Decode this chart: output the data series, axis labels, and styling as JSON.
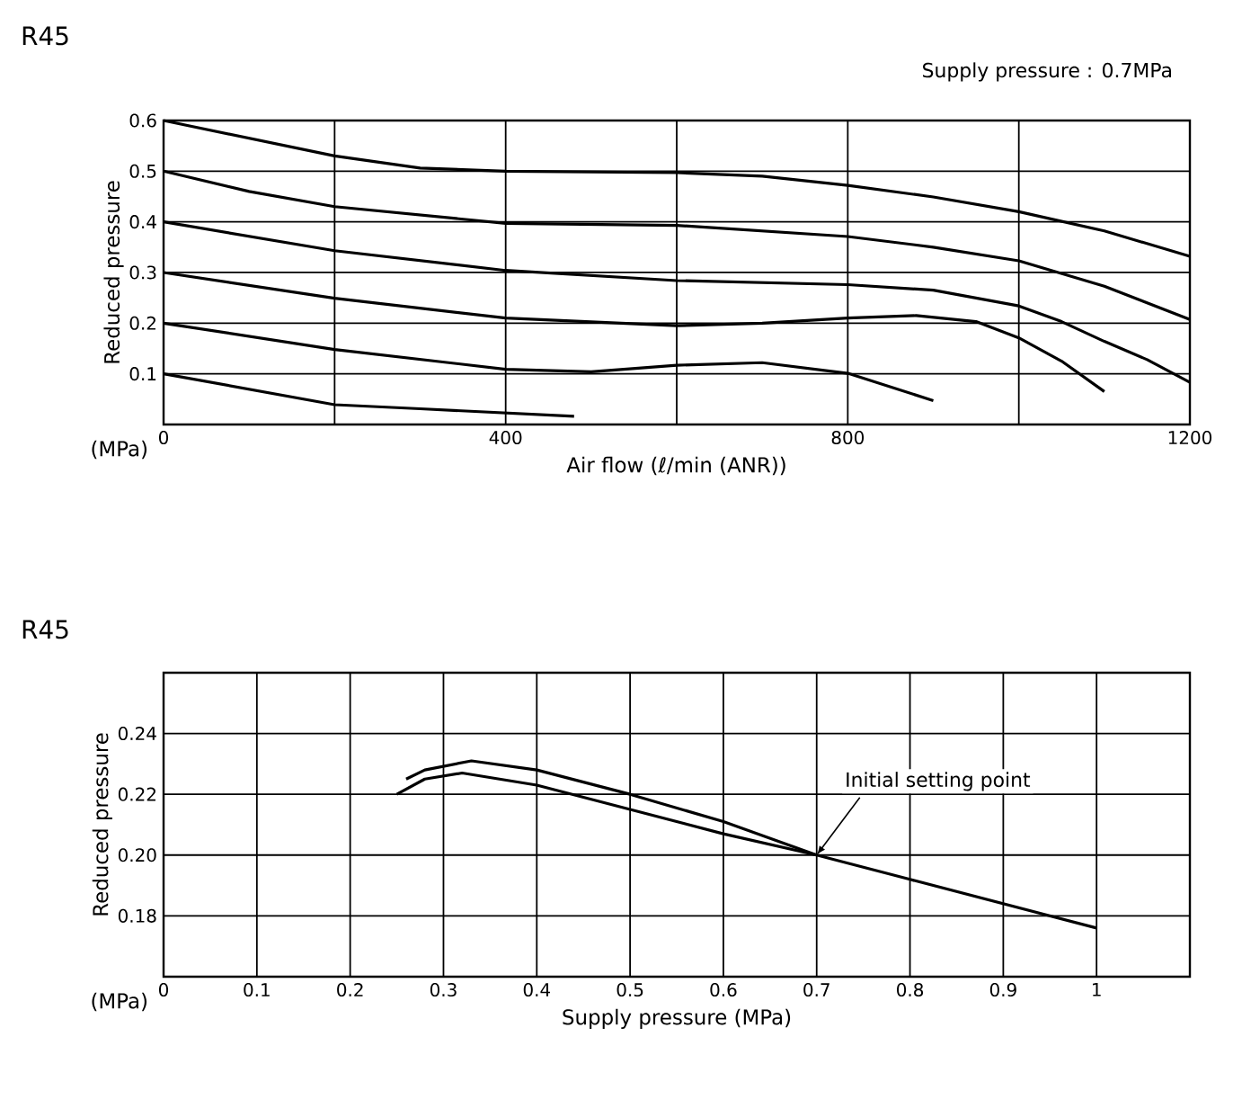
{
  "chart_data": [
    {
      "type": "line",
      "title": "R45",
      "subtitle": "Supply pressure : 0.7MPa",
      "xlabel": "Air flow (ℓ/min (ANR))",
      "ylabel": "Reduced pressure",
      "annotations": [
        "(MPa)"
      ],
      "xlim": [
        0,
        1200
      ],
      "ylim": [
        0,
        0.6
      ],
      "xticks": [
        0,
        {
          "value": 200,
          "label": null
        },
        400,
        {
          "value": 600,
          "label": null
        },
        800,
        {
          "value": 1000,
          "label": null
        },
        1200
      ],
      "yticks": [
        0.1,
        0.2,
        0.3,
        0.4,
        0.5,
        0.6
      ],
      "grid": true,
      "series": [
        {
          "color": "#000000",
          "x": [
            0,
            200,
            300,
            400,
            600,
            700,
            800,
            900,
            1000,
            1100,
            1200
          ],
          "values": [
            0.6,
            0.53,
            0.506,
            0.5,
            0.497,
            0.49,
            0.472,
            0.449,
            0.42,
            0.382,
            0.332
          ]
        },
        {
          "color": "#000000",
          "x": [
            0,
            100,
            200,
            400,
            600,
            800,
            900,
            1000,
            1100,
            1200
          ],
          "values": [
            0.5,
            0.46,
            0.43,
            0.397,
            0.393,
            0.371,
            0.35,
            0.323,
            0.273,
            0.207
          ]
        },
        {
          "color": "#000000",
          "x": [
            0,
            200,
            400,
            600,
            800,
            900,
            1000,
            1050,
            1100,
            1150,
            1200
          ],
          "values": [
            0.4,
            0.343,
            0.304,
            0.284,
            0.276,
            0.265,
            0.234,
            0.203,
            0.164,
            0.128,
            0.083
          ]
        },
        {
          "color": "#000000",
          "x": [
            0,
            200,
            400,
            600,
            700,
            800,
            880,
            950,
            1000,
            1050,
            1100
          ],
          "values": [
            0.3,
            0.249,
            0.21,
            0.195,
            0.2,
            0.21,
            0.215,
            0.203,
            0.171,
            0.125,
            0.065
          ]
        },
        {
          "color": "#000000",
          "x": [
            0,
            200,
            400,
            500,
            600,
            700,
            800,
            900
          ],
          "values": [
            0.2,
            0.148,
            0.109,
            0.104,
            0.117,
            0.122,
            0.101,
            0.047
          ]
        },
        {
          "color": "#000000",
          "x": [
            0,
            200,
            300,
            480
          ],
          "values": [
            0.1,
            0.039,
            0.031,
            0.016
          ]
        }
      ]
    },
    {
      "type": "line",
      "title": "R45",
      "xlabel": "Supply pressure (MPa)",
      "ylabel": "Reduced pressure",
      "annotations": [
        "(MPa)",
        {
          "text": "Initial setting point",
          "x": 0.7,
          "y": 0.2
        }
      ],
      "xlim": [
        0,
        1.1
      ],
      "ylim": [
        0.16,
        0.26
      ],
      "xticks": [
        0,
        0.1,
        0.2,
        0.3,
        0.4,
        0.5,
        0.6,
        0.7,
        0.8,
        0.9,
        1,
        {
          "value": 1.1,
          "label": null
        }
      ],
      "yticks": [
        0.18,
        {
          "value": 0.2,
          "label": "0.20"
        },
        0.22,
        0.24,
        {
          "value": 0.26,
          "label": null
        }
      ],
      "grid": true,
      "series": [
        {
          "color": "#000000",
          "x": [
            0.26,
            0.28,
            0.33,
            0.4,
            0.5,
            0.6,
            0.7
          ],
          "values": [
            0.225,
            0.228,
            0.231,
            0.228,
            0.22,
            0.211,
            0.2
          ]
        },
        {
          "color": "#000000",
          "x": [
            0.25,
            0.28,
            0.32,
            0.4,
            0.5,
            0.6,
            0.7,
            0.8,
            0.9,
            1.0
          ],
          "values": [
            0.22,
            0.225,
            0.227,
            0.223,
            0.215,
            0.207,
            0.2,
            0.192,
            0.184,
            0.176
          ]
        }
      ]
    }
  ]
}
